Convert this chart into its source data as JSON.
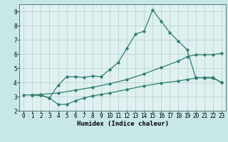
{
  "bg_color": "#c8e8e8",
  "plot_bg_color": "#dff0f0",
  "grid_color": "#b0d0d0",
  "line_color": "#2e7d6e",
  "xlabel": "Humidex (Indice chaleur)",
  "xlim": [
    -0.5,
    23.5
  ],
  "ylim": [
    2,
    9.5
  ],
  "xticks": [
    0,
    1,
    2,
    3,
    4,
    5,
    6,
    7,
    8,
    9,
    10,
    11,
    12,
    13,
    14,
    15,
    16,
    17,
    18,
    19,
    20,
    21,
    22,
    23
  ],
  "yticks": [
    2,
    3,
    4,
    5,
    6,
    7,
    8,
    9
  ],
  "line1_x": [
    1,
    2,
    3,
    4,
    5,
    6,
    7,
    8,
    9,
    10,
    11,
    12,
    13,
    14,
    15,
    16,
    17,
    18,
    19,
    20,
    21,
    22,
    23
  ],
  "line1_y": [
    3.1,
    3.1,
    2.9,
    3.8,
    4.4,
    4.4,
    4.35,
    4.45,
    4.4,
    4.9,
    5.4,
    6.4,
    7.4,
    7.6,
    9.1,
    8.3,
    7.5,
    6.9,
    6.3,
    4.35,
    4.3,
    4.3,
    4.0
  ],
  "line2_x": [
    0,
    2,
    4,
    6,
    8,
    10,
    12,
    14,
    16,
    18,
    19,
    20,
    21,
    22,
    23
  ],
  "line2_y": [
    3.1,
    3.15,
    3.25,
    3.45,
    3.65,
    3.9,
    4.2,
    4.6,
    5.05,
    5.5,
    5.8,
    5.95,
    5.95,
    5.95,
    6.05
  ],
  "line3_x": [
    1,
    2,
    3,
    4,
    5,
    6,
    7,
    8,
    9,
    10,
    12,
    14,
    16,
    18,
    19,
    20,
    21,
    22,
    23
  ],
  "line3_y": [
    3.1,
    3.1,
    2.9,
    2.45,
    2.45,
    2.7,
    2.9,
    3.05,
    3.15,
    3.25,
    3.5,
    3.75,
    3.95,
    4.1,
    4.2,
    4.3,
    4.35,
    4.35,
    4.0
  ],
  "marker": "o",
  "markersize": 2.5,
  "linewidth": 0.9,
  "tick_fontsize": 5.5,
  "xlabel_fontsize": 6.5
}
